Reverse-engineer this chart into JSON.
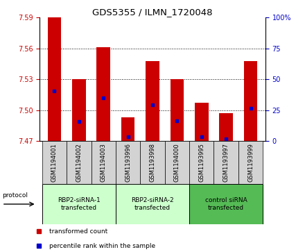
{
  "title": "GDS5355 / ILMN_1720048",
  "samples": [
    "GSM1194001",
    "GSM1194002",
    "GSM1194003",
    "GSM1193996",
    "GSM1193998",
    "GSM1194000",
    "GSM1193995",
    "GSM1193997",
    "GSM1193999"
  ],
  "bar_tops": [
    7.59,
    7.53,
    7.561,
    7.493,
    7.548,
    7.53,
    7.507,
    7.497,
    7.548
  ],
  "blue_positions": [
    7.519,
    7.489,
    7.512,
    7.474,
    7.505,
    7.49,
    7.474,
    7.472,
    7.502
  ],
  "ylim": [
    7.47,
    7.59
  ],
  "ybase": 7.47,
  "yticks": [
    7.47,
    7.5,
    7.53,
    7.56,
    7.59
  ],
  "right_yticks": [
    0,
    25,
    50,
    75,
    100
  ],
  "right_ytick_labels": [
    "0",
    "25",
    "50",
    "75",
    "100%"
  ],
  "groups": [
    {
      "label": "RBP2-siRNA-1\ntransfected",
      "start": 0,
      "end": 3,
      "color": "#ccffcc"
    },
    {
      "label": "RBP2-siRNA-2\ntransfected",
      "start": 3,
      "end": 6,
      "color": "#ccffcc"
    },
    {
      "label": "control siRNA\ntransfected",
      "start": 6,
      "end": 9,
      "color": "#55bb55"
    }
  ],
  "bar_color": "#cc0000",
  "blue_color": "#0000cc",
  "bar_width": 0.55,
  "left_tick_color": "#cc0000",
  "right_tick_color": "#0000cc",
  "sample_area_color": "#d3d3d3",
  "legend_red_label": "transformed count",
  "legend_blue_label": "percentile rank within the sample",
  "protocol_label": "protocol"
}
